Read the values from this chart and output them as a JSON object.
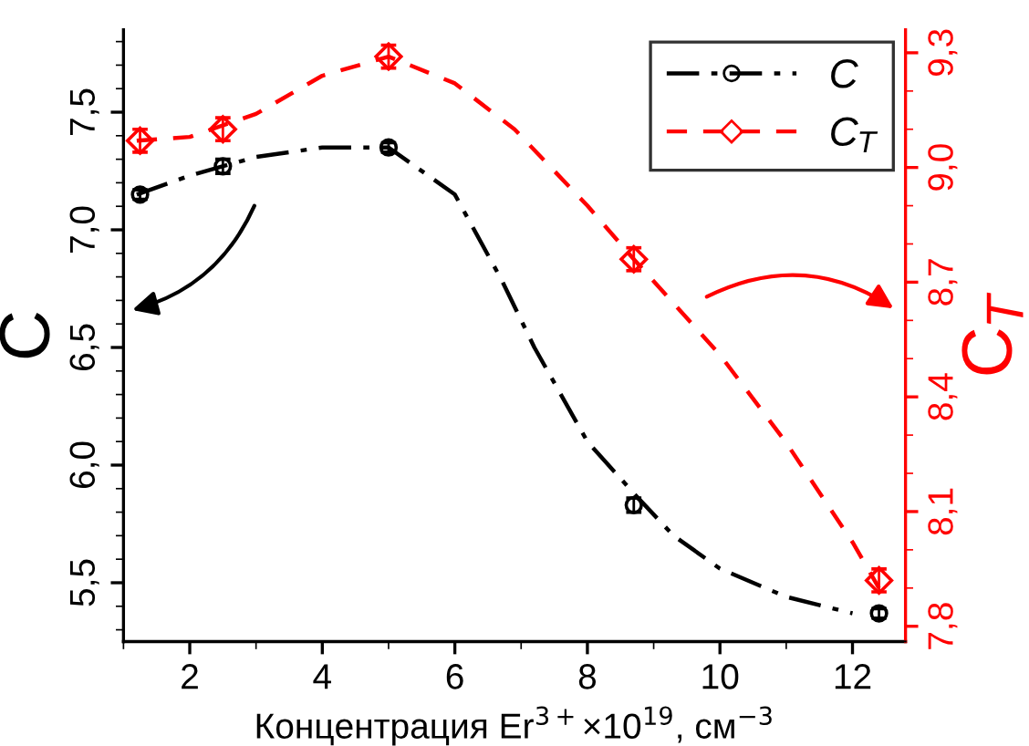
{
  "chart_data": {
    "type": "scatter",
    "xlabel": "Концентрация Er$^{3+}$×10$^{19}$, см$^{−3}$",
    "ylabel": "C",
    "y2label": "C$_{T}$",
    "xlim": [
      1.0,
      12.8
    ],
    "xticks": [
      2,
      4,
      6,
      8,
      10,
      12
    ],
    "ylim": [
      5.25,
      7.85
    ],
    "yticks": [
      {
        "value": 5.5,
        "label": "5,5"
      },
      {
        "value": 6.0,
        "label": "6,0"
      },
      {
        "value": 6.5,
        "label": "6,5"
      },
      {
        "value": 7.0,
        "label": "7,0"
      },
      {
        "value": 7.5,
        "label": "7,5"
      }
    ],
    "y2lim": [
      7.76,
      9.36
    ],
    "y2ticks": [
      {
        "value": 7.8,
        "label": "7,8"
      },
      {
        "value": 8.1,
        "label": "8,1"
      },
      {
        "value": 8.4,
        "label": "8,4"
      },
      {
        "value": 8.7,
        "label": "8,7"
      },
      {
        "value": 9.0,
        "label": "9,0"
      },
      {
        "value": 9.3,
        "label": "9,3"
      }
    ],
    "legend": "top right",
    "grid": false,
    "series": [
      {
        "name": "C",
        "color": "#000000",
        "marker": "circle",
        "x": [
          1.25,
          2.5,
          5.0,
          8.7,
          12.4
        ],
        "values": [
          7.15,
          7.27,
          7.35,
          5.83,
          5.37
        ],
        "errors": [
          0.02,
          0.03,
          0.02,
          0.03,
          0.02
        ]
      },
      {
        "type": "line",
        "color": "#000000",
        "line_style": "dashdot",
        "x": [
          1.2,
          2.0,
          3.0,
          4.0,
          5.0,
          6.0,
          6.7,
          7.2,
          8.0,
          8.7,
          9.3,
          10.0,
          11.0,
          12.0
        ],
        "values": [
          7.15,
          7.23,
          7.31,
          7.35,
          7.35,
          7.15,
          6.79,
          6.5,
          6.1,
          5.88,
          5.7,
          5.56,
          5.44,
          5.37
        ]
      },
      {
        "name": "C$_{T}$",
        "axis": "y2",
        "color": "#ff0000",
        "marker": "diamond",
        "x": [
          1.25,
          2.5,
          5.0,
          8.7,
          12.4
        ],
        "values": [
          9.07,
          9.1,
          9.29,
          8.76,
          7.92
        ],
        "errors": [
          0.03,
          0.03,
          0.03,
          0.03,
          0.03
        ]
      },
      {
        "type": "line",
        "axis": "y2",
        "color": "#ff0000",
        "line_style": "dashed",
        "x": [
          1.2,
          2.0,
          3.0,
          4.0,
          5.0,
          6.0,
          6.9,
          8.0,
          8.7,
          10.0,
          11.0,
          12.0,
          12.4
        ],
        "values": [
          9.07,
          9.08,
          9.14,
          9.24,
          9.29,
          9.22,
          9.1,
          8.9,
          8.76,
          8.51,
          8.28,
          8.02,
          7.9
        ]
      }
    ]
  }
}
